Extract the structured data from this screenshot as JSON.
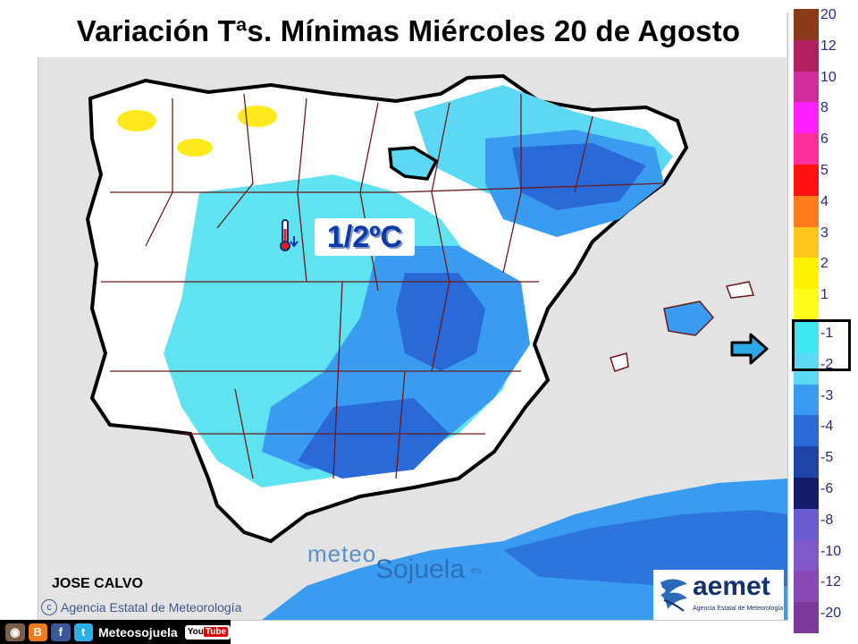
{
  "title": "Variación Tªs. Mínimas Miércoles 20 de Agosto",
  "highlight": {
    "value_text": "1/2ºC",
    "icon": "thermometer-down-icon"
  },
  "legend": {
    "labels": [
      "20",
      "12",
      "10",
      "8",
      "6",
      "5",
      "4",
      "3",
      "2",
      "1",
      "-1",
      "-2",
      "-3",
      "-4",
      "-5",
      "-6",
      "-8",
      "-10",
      "-12",
      "-20"
    ],
    "colors": [
      "#8b3a1a",
      "#b02060",
      "#d02c9a",
      "#ff20ff",
      "#ff2e9a",
      "#ff1010",
      "#ff7a1c",
      "#ffc41c",
      "#fff200",
      "#fffc1a",
      "#3ee8ee",
      "#5cd8f5",
      "#3a9cf0",
      "#2a6ad8",
      "#1e44a8",
      "#141c6c",
      "#6a5cd0",
      "#8058c8",
      "#8a4ab4",
      "#7a3a9a"
    ],
    "highlighted_range": [
      "-1",
      "-2"
    ]
  },
  "author": "JOSE CALVO",
  "agency": "Agencia Estatal de Meteorología",
  "watermark": {
    "part1": "meteo",
    "part2": "Sojuela",
    "suffix": ".es"
  },
  "aemet": {
    "name": "aemet",
    "subtitle": "Agencia Estatal de Meteorología"
  },
  "social": {
    "name": "Meteosojuela",
    "youtube_left": "You",
    "youtube_right": "Tube"
  }
}
